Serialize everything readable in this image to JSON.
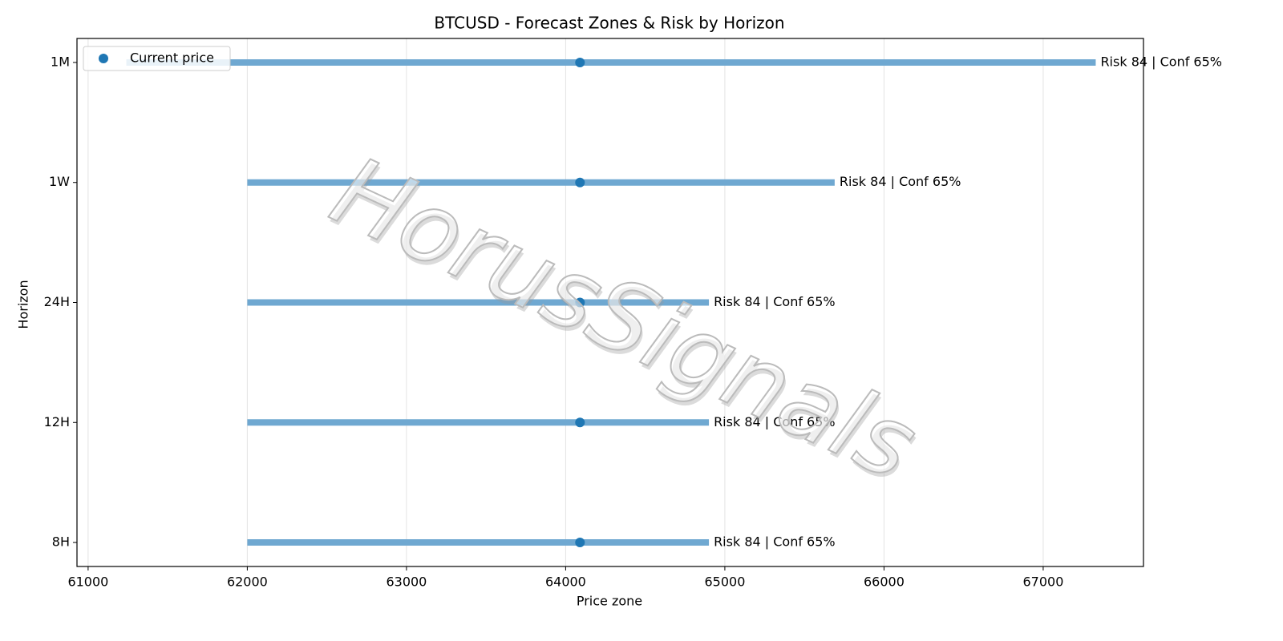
{
  "chart_data": {
    "type": "range",
    "title": "BTCUSD - Forecast Zones & Risk by Horizon",
    "x_label": "Price zone",
    "y_label": "Horizon",
    "categories": [
      "8H",
      "12H",
      "24H",
      "1W",
      "1M"
    ],
    "zones": {
      "low": [
        62000,
        62000,
        62000,
        62000,
        61240
      ],
      "high": [
        64900,
        64900,
        64900,
        65690,
        67330
      ],
      "color": "#6fa8d1"
    },
    "current": {
      "name": "Current price",
      "values": [
        64090,
        64090,
        64090,
        64090,
        64090
      ],
      "color": "#1f77b4"
    },
    "annotations": [
      "Risk 84 | Conf 65%",
      "Risk 84 | Conf 65%",
      "Risk 84 | Conf 65%",
      "Risk 84 | Conf 65%",
      "Risk 84 | Conf 65%"
    ],
    "xlim": [
      60930,
      67630
    ],
    "xticks": [
      61000,
      62000,
      63000,
      64000,
      65000,
      66000,
      67000
    ],
    "grid": true,
    "legend": "upper left",
    "watermark": "HorusSignals"
  }
}
